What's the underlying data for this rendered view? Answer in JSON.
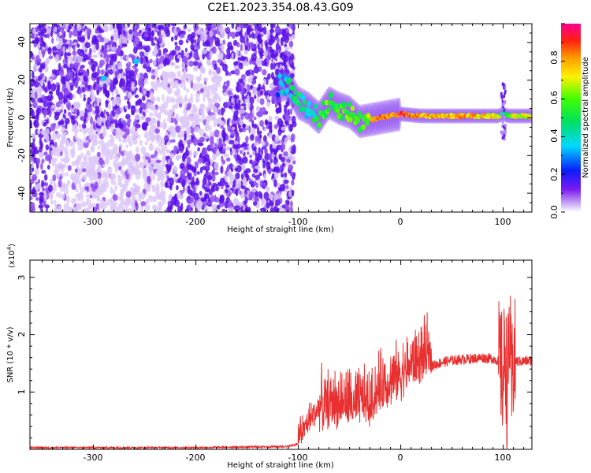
{
  "title": "C2E1.2023.354.08.43.G09",
  "colors": {
    "snr_line": "#e83030",
    "trace_core": "#00c8c8",
    "scatter_strong": "#6010e0",
    "scatter_weak": "#c9a8f5"
  },
  "chart_data": [
    {
      "type": "heatmap",
      "title": "C2E1.2023.354.08.43.G09",
      "xlabel": "Height of straight line (km)",
      "ylabel": "Frequency (Hz)",
      "xlim": [
        -362,
        128
      ],
      "ylim": [
        -50,
        50
      ],
      "x_ticks": [
        -300,
        -200,
        -100,
        0,
        100
      ],
      "y_ticks": [
        -40,
        -20,
        0,
        20,
        40
      ],
      "grid": false,
      "colorbar": {
        "label": "Normalized spectral amplitude",
        "range": [
          0.0,
          1.0
        ],
        "ticks": [
          0.0,
          0.2,
          0.4,
          0.6,
          0.8
        ],
        "colormap": "rainbow (violet to red/pink)"
      },
      "noise_region_x": [
        -362,
        -104
      ],
      "signal_trace": {
        "x": [
          -120,
          -110,
          -100,
          -90,
          -80,
          -70,
          -60,
          -50,
          -40,
          -30,
          -20,
          -10,
          0,
          20,
          40,
          60,
          80,
          95,
          100,
          105,
          110,
          128
        ],
        "freq": [
          17,
          18,
          8,
          5,
          0,
          8,
          5,
          3,
          -2,
          -1,
          0,
          1,
          2,
          1,
          1,
          1,
          1,
          1,
          2,
          1,
          1,
          1
        ],
        "amplitude": [
          0.3,
          0.4,
          0.5,
          0.4,
          0.5,
          0.6,
          0.5,
          0.6,
          0.5,
          0.7,
          0.9,
          0.8,
          0.9,
          0.8,
          0.75,
          0.8,
          0.75,
          0.7,
          0.4,
          0.6,
          0.7,
          0.7
        ]
      }
    },
    {
      "type": "line",
      "xlabel": "Height of straight line (km)",
      "ylabel": "SNR (10 * v/v)",
      "y_multiplier": "(x10^4)",
      "xlim": [
        -362,
        128
      ],
      "ylim": [
        0,
        3.3
      ],
      "x_ticks": [
        -300,
        -200,
        -100,
        0,
        100
      ],
      "y_ticks": [
        1,
        2,
        3
      ],
      "grid": false,
      "series": [
        {
          "x": [
            -362,
            -300,
            -200,
            -110,
            -100,
            -90,
            -82,
            -75,
            -68,
            -60,
            -52,
            -45,
            -38,
            -30,
            -25,
            -18,
            -10,
            0,
            10,
            20,
            30,
            40,
            50,
            60,
            70,
            80,
            90,
            95,
            98,
            100,
            102,
            104,
            106,
            108,
            110,
            115,
            128
          ],
          "y": [
            0.03,
            0.03,
            0.03,
            0.05,
            0.1,
            0.35,
            0.55,
            0.5,
            0.6,
            0.55,
            0.6,
            0.5,
            0.65,
            0.55,
            0.75,
            0.9,
            0.95,
            1.05,
            1.25,
            1.35,
            1.45,
            1.52,
            1.55,
            1.57,
            1.58,
            1.6,
            1.58,
            1.55,
            1.4,
            1.2,
            1.9,
            0.8,
            2.2,
            1.0,
            1.55,
            1.53,
            1.55
          ]
        }
      ]
    }
  ],
  "labels": {
    "top_x_ticks": [
      "-300",
      "-200",
      "-100",
      "0",
      "100"
    ],
    "top_y_ticks": [
      "-40",
      "-20",
      "0",
      "20",
      "40"
    ],
    "top_xlabel": "Height of straight line (km)",
    "top_ylabel": "Frequency (Hz)",
    "cbar_ticks": [
      "0.0",
      "0.2",
      "0.4",
      "0.6",
      "0.8"
    ],
    "cbar_label": "Normalized spectral amplitude",
    "bot_x_ticks": [
      "-300",
      "-200",
      "-100",
      "0",
      "100"
    ],
    "bot_y_ticks": [
      "1",
      "2",
      "3"
    ],
    "bot_xlabel": "Height of straight line (km)",
    "bot_ylabel": "SNR (10 * v/v)",
    "bot_mult_base": "(x10",
    "bot_mult_exp": "4",
    "bot_mult_close": ")"
  }
}
